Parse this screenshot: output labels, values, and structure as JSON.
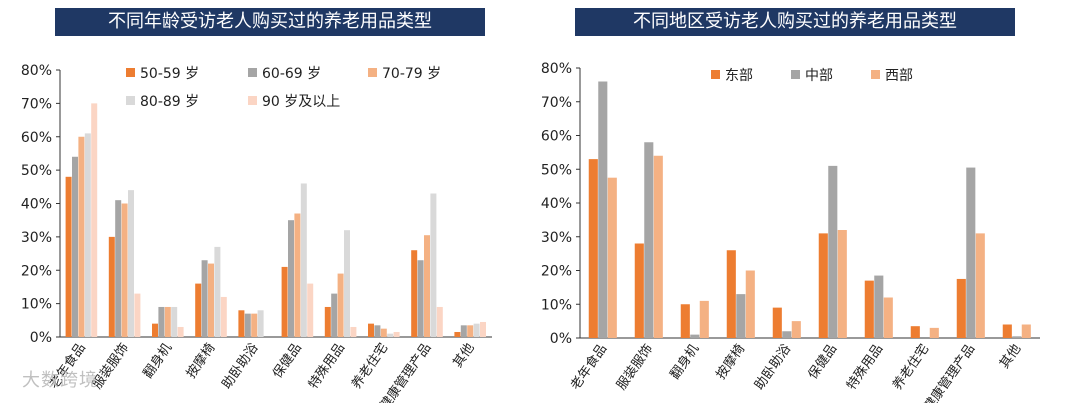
{
  "watermark": "大数跨境",
  "colors": {
    "title_bg": "#1f3864",
    "axis": "#333333"
  },
  "chart_data": [
    {
      "type": "bar",
      "title": "不同年龄受访老人购买过的养老用品类型",
      "categories": [
        "老年食品",
        "服装服饰",
        "翻身机",
        "按摩椅",
        "助卧助浴",
        "保健品",
        "特殊用品",
        "养老住宅",
        "健康管理产品",
        "其他"
      ],
      "ylim": [
        0,
        80
      ],
      "yticks": [
        "0%",
        "10%",
        "20%",
        "30%",
        "40%",
        "50%",
        "60%",
        "70%",
        "80%"
      ],
      "legend_position": "top",
      "series": [
        {
          "name": "50-59 岁",
          "color": "#ed7d31",
          "values": [
            48,
            30,
            4,
            16,
            8,
            21,
            9,
            4,
            26,
            1.5
          ]
        },
        {
          "name": "60-69 岁",
          "color": "#a5a5a5",
          "values": [
            54,
            41,
            9,
            23,
            7,
            35,
            13,
            3.5,
            23,
            3.5
          ]
        },
        {
          "name": "70-79 岁",
          "color": "#f4b183",
          "values": [
            60,
            40,
            9,
            22,
            7,
            37,
            19,
            2.5,
            30.5,
            3.5
          ]
        },
        {
          "name": "80-89 岁",
          "color": "#d9d9d9",
          "values": [
            61,
            44,
            9,
            27,
            8,
            46,
            32,
            1,
            43,
            4
          ]
        },
        {
          "name": "90 岁及以上",
          "color": "#fbd5c4",
          "values": [
            70,
            13,
            3,
            12,
            0,
            16,
            3,
            1.5,
            9,
            4.5
          ]
        }
      ]
    },
    {
      "type": "bar",
      "title": "不同地区受访老人购买过的养老用品类型",
      "categories": [
        "老年食品",
        "服装服饰",
        "翻身机",
        "按摩椅",
        "助卧助浴",
        "保健品",
        "特殊用品",
        "养老住宅",
        "健康管理产品",
        "其他"
      ],
      "ylim": [
        0,
        80
      ],
      "yticks": [
        "0%",
        "10%",
        "20%",
        "30%",
        "40%",
        "50%",
        "60%",
        "70%",
        "80%"
      ],
      "legend_position": "top",
      "series": [
        {
          "name": "东部",
          "color": "#ed7d31",
          "values": [
            53,
            28,
            10,
            26,
            9,
            31,
            17,
            3.5,
            17.5,
            4
          ]
        },
        {
          "name": "中部",
          "color": "#a5a5a5",
          "values": [
            76,
            58,
            1,
            13,
            2,
            51,
            18.5,
            0,
            50.5,
            0.5
          ]
        },
        {
          "name": "西部",
          "color": "#f4b183",
          "values": [
            47.5,
            54,
            11,
            20,
            5,
            32,
            12,
            3,
            31,
            4
          ]
        }
      ]
    }
  ]
}
